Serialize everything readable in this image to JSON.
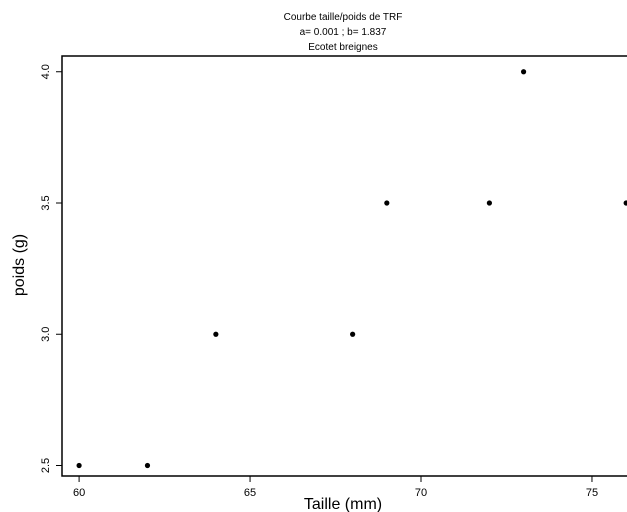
{
  "chart_data": {
    "type": "scatter",
    "title": [
      "Courbe taille/poids de  TRF",
      "a= 0.001  ; b= 1.837",
      "Ecotet breignes"
    ],
    "xlabel": "Taille (mm)",
    "ylabel": "poids (g)",
    "x_ticks": [
      60,
      65,
      70,
      75
    ],
    "y_ticks": [
      2.5,
      3.0,
      3.5,
      4.0
    ],
    "x_tick_labels": [
      "60",
      "65",
      "70",
      "75"
    ],
    "y_tick_labels": [
      "2.5",
      "3.0",
      "3.5",
      "4.0"
    ],
    "xlim": [
      59.5,
      76.2
    ],
    "ylim": [
      2.46,
      4.06
    ],
    "grid": false,
    "point_color": "#000000",
    "points": [
      {
        "x": 60,
        "y": 2.5
      },
      {
        "x": 62,
        "y": 2.5
      },
      {
        "x": 64,
        "y": 3.0
      },
      {
        "x": 68,
        "y": 3.0
      },
      {
        "x": 69,
        "y": 3.5
      },
      {
        "x": 72,
        "y": 3.5
      },
      {
        "x": 73,
        "y": 4.0
      },
      {
        "x": 76,
        "y": 3.5
      }
    ]
  }
}
